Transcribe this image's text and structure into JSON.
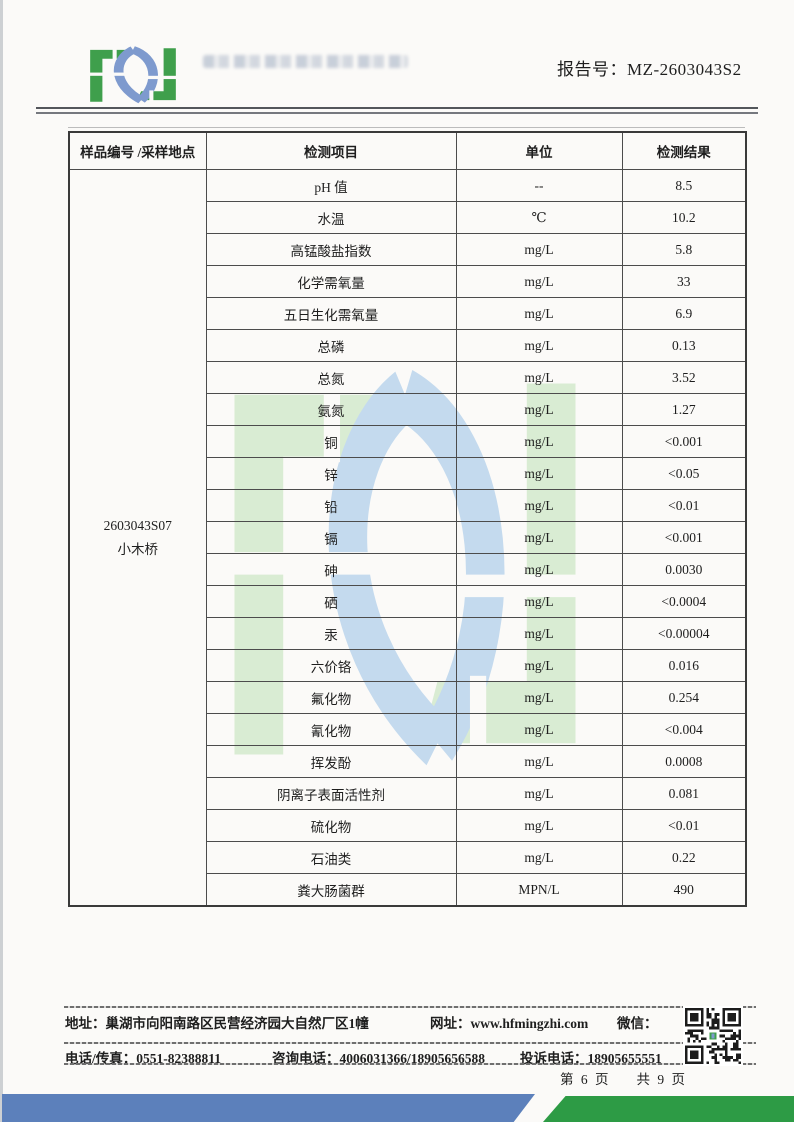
{
  "header": {
    "report_no_label": "报告号：",
    "report_no_value": "MZ-2603043S2"
  },
  "table": {
    "columns": [
      "样品编号 /采样地点",
      "检测项目",
      "单位",
      "检测结果"
    ],
    "sample": {
      "id": "2603043S07",
      "location": "小木桥"
    },
    "rows": [
      {
        "item": "pH 值",
        "unit": "--",
        "result": "8.5"
      },
      {
        "item": "水温",
        "unit": "℃",
        "result": "10.2"
      },
      {
        "item": "高锰酸盐指数",
        "unit": "mg/L",
        "result": "5.8"
      },
      {
        "item": "化学需氧量",
        "unit": "mg/L",
        "result": "33"
      },
      {
        "item": "五日生化需氧量",
        "unit": "mg/L",
        "result": "6.9"
      },
      {
        "item": "总磷",
        "unit": "mg/L",
        "result": "0.13"
      },
      {
        "item": "总氮",
        "unit": "mg/L",
        "result": "3.52"
      },
      {
        "item": "氨氮",
        "unit": "mg/L",
        "result": "1.27"
      },
      {
        "item": "铜",
        "unit": "mg/L",
        "result": "<0.001"
      },
      {
        "item": "锌",
        "unit": "mg/L",
        "result": "<0.05"
      },
      {
        "item": "铅",
        "unit": "mg/L",
        "result": "<0.01"
      },
      {
        "item": "镉",
        "unit": "mg/L",
        "result": "<0.001"
      },
      {
        "item": "砷",
        "unit": "mg/L",
        "result": "0.0030"
      },
      {
        "item": "硒",
        "unit": "mg/L",
        "result": "<0.0004"
      },
      {
        "item": "汞",
        "unit": "mg/L",
        "result": "<0.00004"
      },
      {
        "item": "六价铬",
        "unit": "mg/L",
        "result": "0.016"
      },
      {
        "item": "氟化物",
        "unit": "mg/L",
        "result": "0.254"
      },
      {
        "item": "氰化物",
        "unit": "mg/L",
        "result": "<0.004"
      },
      {
        "item": "挥发酚",
        "unit": "mg/L",
        "result": "0.0008"
      },
      {
        "item": "阴离子表面活性剂",
        "unit": "mg/L",
        "result": "0.081"
      },
      {
        "item": "硫化物",
        "unit": "mg/L",
        "result": "<0.01"
      },
      {
        "item": "石油类",
        "unit": "mg/L",
        "result": "0.22"
      },
      {
        "item": "粪大肠菌群",
        "unit": "MPN/L",
        "result": "490"
      }
    ]
  },
  "footer": {
    "address_label": "地址：",
    "address": "巢湖市向阳南路区民营经济园大自然厂区1幢",
    "website_label": "网址：",
    "website": "www.hfmingzhi.com",
    "wechat_label": "微信：",
    "phone_fax_label": "电话/传真：",
    "phone_fax": "0551-82388811",
    "hotline_label": "咨询电话：",
    "hotline": "4006031366/18905656588",
    "complaint_label": "投诉电话：",
    "complaint": "18905655551",
    "page_current": "第 6 页",
    "page_total": "共 9 页"
  },
  "icons": {
    "company_logo": "interlocked-green-blue-monogram",
    "wechat_qr": "qr-code"
  },
  "colors": {
    "logo_green": "#3f9f4c",
    "logo_blue": "#7e9ace",
    "watermark_green": "#d9ecd3",
    "watermark_blue": "#c4daee",
    "band_blue": "#5c80bb",
    "band_green": "#2d9b45"
  }
}
